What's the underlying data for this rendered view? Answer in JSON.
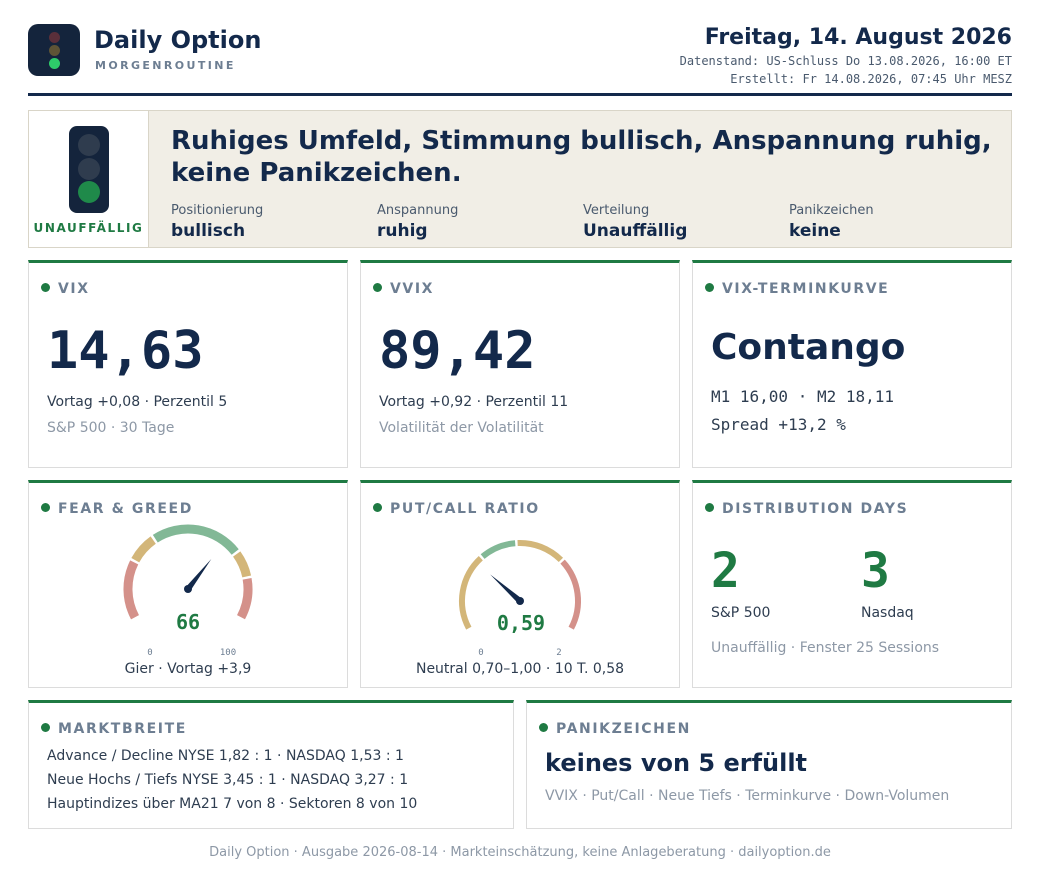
{
  "header": {
    "brand_title": "Daily Option",
    "brand_subtitle": "MORGENROUTINE",
    "date_title": "Freitag, 14. August 2026",
    "data_status": "Datenstand: US-Schluss Do 13.08.2026, 16:00 ET",
    "created": "Erstellt: Fr 14.08.2026, 07:45 Uhr MESZ",
    "logo_icon": "traffic-light-icon"
  },
  "banner": {
    "signal_label": "UNAUFFÄLLIG",
    "headline": "Ruhiges Umfeld, Stimmung bullisch, Anspannung ruhig, keine Panikzeichen.",
    "active_lamp": "green",
    "stats": [
      {
        "label": "Positionierung",
        "value": "bullisch"
      },
      {
        "label": "Anspannung",
        "value": "ruhig"
      },
      {
        "label": "Verteilung",
        "value": "Unauffällig"
      },
      {
        "label": "Panikzeichen",
        "value": "keine"
      }
    ]
  },
  "cards": {
    "vix": {
      "title": "VIX",
      "value": "14,63",
      "line1": "Vortag +0,08 · Perzentil 5",
      "line2": "S&P 500 · 30 Tage"
    },
    "vvix": {
      "title": "VVIX",
      "value": "89,42",
      "line1": "Vortag +0,92 · Perzentil 11",
      "line2": "Volatilität der Volatilität"
    },
    "term": {
      "title": "VIX-TERMINKURVE",
      "value": "Contango",
      "line1": "M1 16,00 · M2 18,11",
      "line2": "Spread +13,2 %"
    },
    "fear_greed": {
      "title": "FEAR & GREED",
      "value": 66,
      "value_label": "66",
      "min_label": "0",
      "max_label": "100",
      "range": [
        0,
        100
      ],
      "caption": "Gier · Vortag +3,9"
    },
    "put_call": {
      "title": "PUT/CALL RATIO",
      "value": 0.59,
      "value_label": "0,59",
      "min_label": "0",
      "max_label": "2",
      "range": [
        0,
        2
      ],
      "caption": "Neutral 0,70–1,00 · 10 T. 0,58"
    },
    "distribution": {
      "title": "DISTRIBUTION DAYS",
      "items": [
        {
          "value": "2",
          "label": "S&P 500"
        },
        {
          "value": "3",
          "label": "Nasdaq"
        }
      ],
      "note": "Unauffällig · Fenster 25 Sessions"
    },
    "breadth": {
      "title": "MARKTBREITE",
      "lines": [
        "Advance / Decline NYSE 1,82 : 1 · NASDAQ 1,53 : 1",
        "Neue Hochs / Tiefs NYSE 3,45 : 1 · NASDAQ 3,27 : 1",
        "Hauptindizes über MA21 7 von 8 · Sektoren 8 von 10"
      ]
    },
    "panic": {
      "title": "PANIKZEICHEN",
      "headline": "keines von 5 erfüllt",
      "items": "VVIX · Put/Call · Neue Tiefs · Terminkurve · Down-Volumen"
    }
  },
  "colors": {
    "navy": "#13294b",
    "green": "#1f7a43",
    "gauge_red": "#d4918a",
    "gauge_yellow": "#d3b679",
    "gauge_green": "#82b896"
  },
  "footer": "Daily Option · Ausgabe 2026-08-14 · Markteinschätzung, keine Anlageberatung · dailyoption.de"
}
